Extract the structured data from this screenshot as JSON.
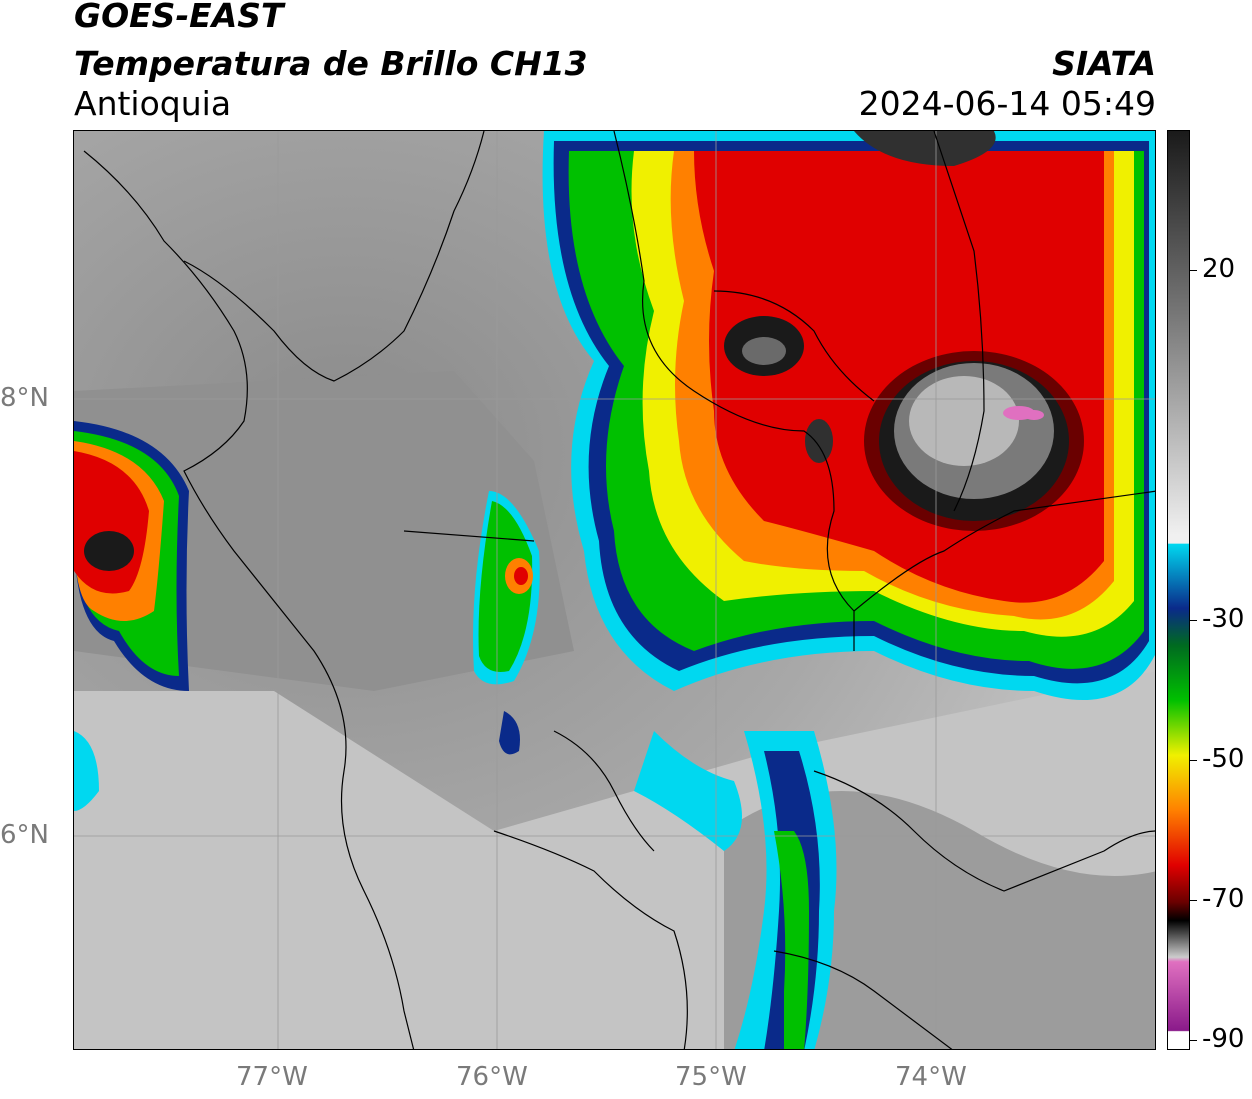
{
  "header": {
    "satellite": "GOES-EAST",
    "product": "Temperatura de Brillo CH13",
    "region": "Antioquia",
    "source": "SIATA",
    "timestamp": "2024-06-14 05:49"
  },
  "map": {
    "latitude_labels": [
      "8°N",
      "6°N"
    ],
    "longitude_labels": [
      "77°W",
      "76°W",
      "75°W",
      "74°W"
    ]
  },
  "colorbar": {
    "tick_labels": [
      "20",
      "-30",
      "-50",
      "-70",
      "-90"
    ],
    "colors": {
      "warm_gray_top": "#1a1a1a",
      "light_gray": "#f0f0f0",
      "cyan": "#00d8f0",
      "blue": "#0a2a8a",
      "green": "#00c000",
      "yellow": "#f0f000",
      "orange": "#ff8000",
      "red": "#e00000",
      "dark_red": "#6a0000",
      "black": "#000000",
      "pink": "#e070c0",
      "purple": "#8a1a8a"
    }
  }
}
